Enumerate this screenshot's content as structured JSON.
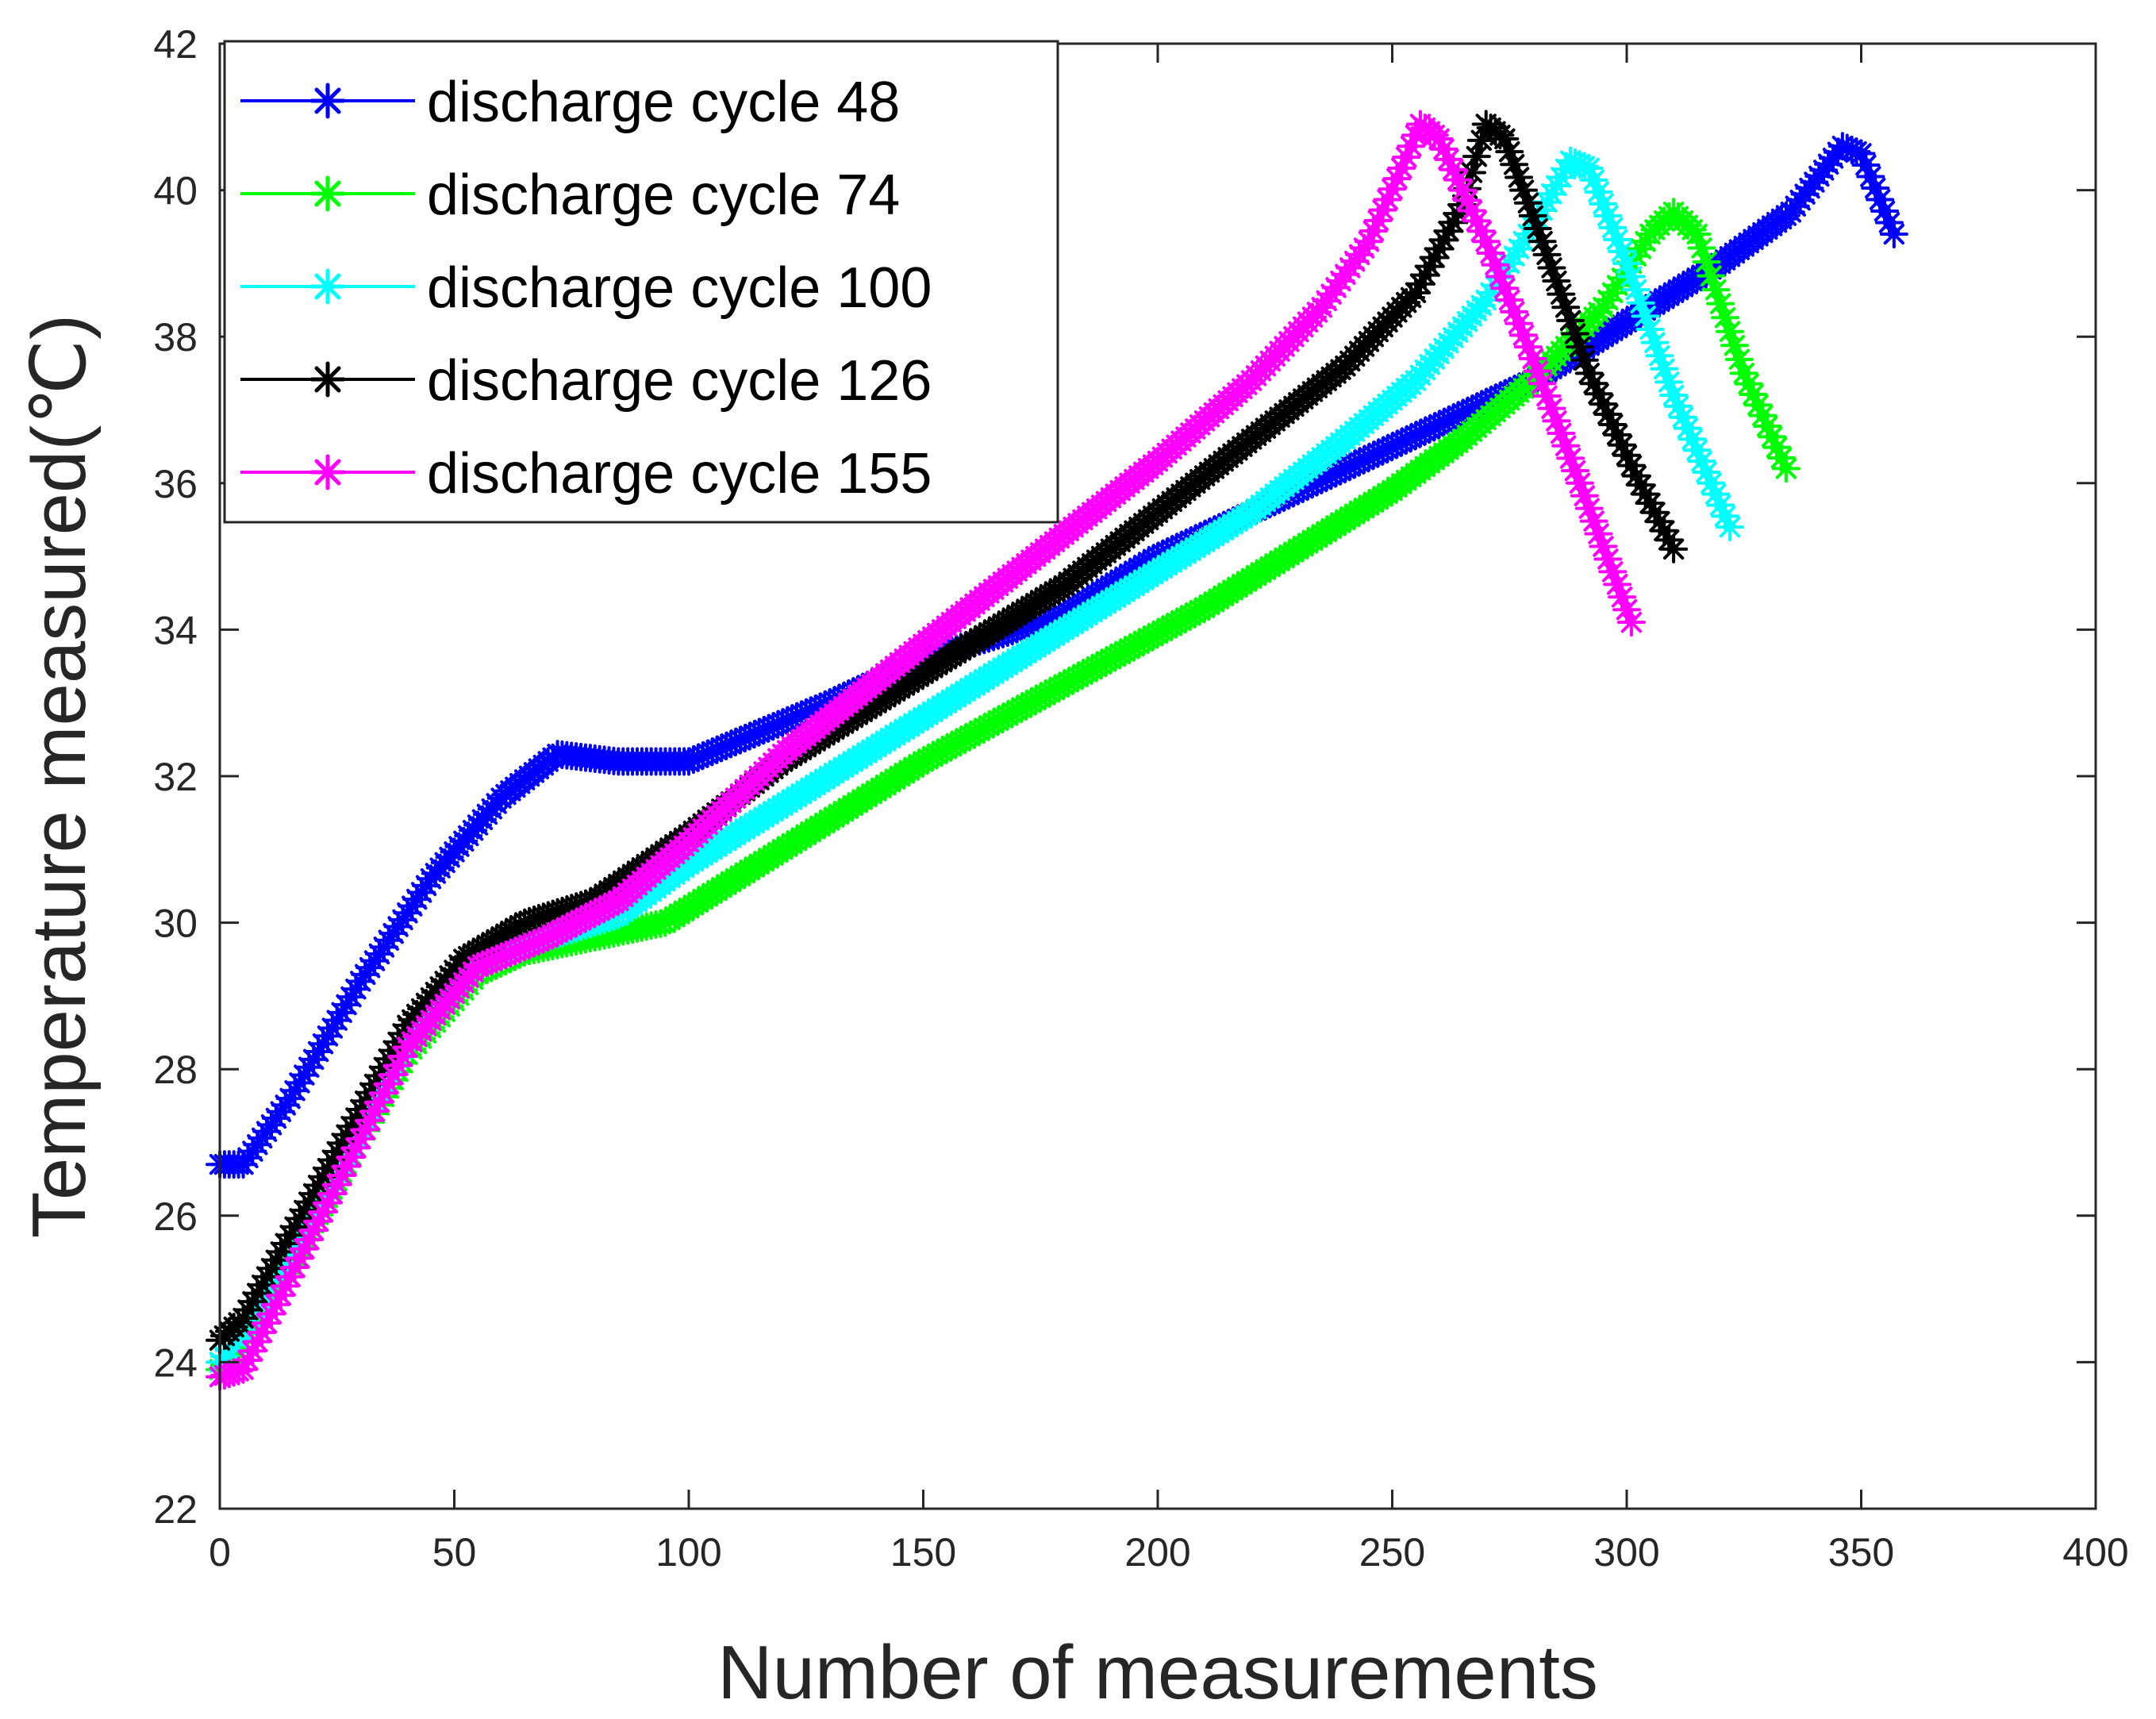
{
  "chart_data": {
    "type": "line",
    "title": "",
    "xlabel": "Number of measurements",
    "ylabel": "Temperature measured(℃)",
    "xlim": [
      0,
      400
    ],
    "ylim": [
      22,
      42
    ],
    "xticks": [
      0,
      50,
      100,
      150,
      200,
      250,
      300,
      350,
      400
    ],
    "yticks": [
      22,
      24,
      26,
      28,
      30,
      32,
      34,
      36,
      38,
      40,
      42
    ],
    "grid": false,
    "legend_position": "top-left",
    "marker": "asterisk",
    "series": [
      {
        "name": "discharge cycle 48",
        "color": "#0000ff",
        "points": [
          [
            0,
            26.7
          ],
          [
            5,
            26.7
          ],
          [
            15,
            27.6
          ],
          [
            30,
            29.2
          ],
          [
            45,
            30.6
          ],
          [
            60,
            31.7
          ],
          [
            72,
            32.3
          ],
          [
            85,
            32.2
          ],
          [
            100,
            32.2
          ],
          [
            115,
            32.6
          ],
          [
            130,
            33.0
          ],
          [
            150,
            33.6
          ],
          [
            180,
            34.2
          ],
          [
            200,
            35.0
          ],
          [
            220,
            35.6
          ],
          [
            240,
            36.2
          ],
          [
            260,
            36.8
          ],
          [
            280,
            37.4
          ],
          [
            300,
            38.2
          ],
          [
            320,
            39.0
          ],
          [
            335,
            39.7
          ],
          [
            346,
            40.6
          ],
          [
            350,
            40.5
          ],
          [
            357,
            39.4
          ]
        ]
      },
      {
        "name": "discharge cycle 74",
        "color": "#00ff00",
        "points": [
          [
            0,
            23.9
          ],
          [
            5,
            24.2
          ],
          [
            20,
            25.9
          ],
          [
            40,
            28.2
          ],
          [
            55,
            29.3
          ],
          [
            65,
            29.6
          ],
          [
            80,
            29.8
          ],
          [
            95,
            30.0
          ],
          [
            110,
            30.6
          ],
          [
            130,
            31.4
          ],
          [
            150,
            32.2
          ],
          [
            170,
            32.9
          ],
          [
            190,
            33.6
          ],
          [
            210,
            34.3
          ],
          [
            230,
            35.1
          ],
          [
            250,
            35.9
          ],
          [
            265,
            36.6
          ],
          [
            280,
            37.4
          ],
          [
            295,
            38.4
          ],
          [
            305,
            39.4
          ],
          [
            310,
            39.7
          ],
          [
            315,
            39.4
          ],
          [
            325,
            37.5
          ],
          [
            334,
            36.2
          ]
        ]
      },
      {
        "name": "discharge cycle 100",
        "color": "#00ffff",
        "points": [
          [
            0,
            24.0
          ],
          [
            5,
            24.4
          ],
          [
            20,
            26.0
          ],
          [
            40,
            28.4
          ],
          [
            55,
            29.5
          ],
          [
            70,
            29.8
          ],
          [
            85,
            30.1
          ],
          [
            100,
            30.8
          ],
          [
            120,
            31.6
          ],
          [
            140,
            32.4
          ],
          [
            160,
            33.2
          ],
          [
            180,
            34.0
          ],
          [
            200,
            34.8
          ],
          [
            220,
            35.6
          ],
          [
            240,
            36.6
          ],
          [
            255,
            37.4
          ],
          [
            270,
            38.5
          ],
          [
            280,
            39.5
          ],
          [
            288,
            40.4
          ],
          [
            292,
            40.3
          ],
          [
            300,
            39.0
          ],
          [
            310,
            37.2
          ],
          [
            322,
            35.4
          ]
        ]
      },
      {
        "name": "discharge cycle 126",
        "color": "#000000",
        "points": [
          [
            0,
            24.3
          ],
          [
            5,
            24.6
          ],
          [
            20,
            26.3
          ],
          [
            40,
            28.6
          ],
          [
            52,
            29.5
          ],
          [
            65,
            30.0
          ],
          [
            80,
            30.3
          ],
          [
            100,
            31.2
          ],
          [
            120,
            32.2
          ],
          [
            140,
            33.0
          ],
          [
            160,
            33.8
          ],
          [
            180,
            34.6
          ],
          [
            200,
            35.6
          ],
          [
            220,
            36.6
          ],
          [
            240,
            37.6
          ],
          [
            255,
            38.6
          ],
          [
            265,
            39.8
          ],
          [
            270,
            40.9
          ],
          [
            274,
            40.7
          ],
          [
            282,
            39.3
          ],
          [
            292,
            37.5
          ],
          [
            302,
            36.1
          ],
          [
            310,
            35.1
          ]
        ]
      },
      {
        "name": "discharge cycle 155",
        "color": "#ff00ff",
        "points": [
          [
            0,
            23.8
          ],
          [
            5,
            23.9
          ],
          [
            20,
            25.8
          ],
          [
            40,
            28.3
          ],
          [
            55,
            29.4
          ],
          [
            70,
            29.8
          ],
          [
            85,
            30.3
          ],
          [
            100,
            31.1
          ],
          [
            120,
            32.3
          ],
          [
            140,
            33.3
          ],
          [
            160,
            34.3
          ],
          [
            180,
            35.3
          ],
          [
            200,
            36.3
          ],
          [
            220,
            37.4
          ],
          [
            235,
            38.4
          ],
          [
            245,
            39.3
          ],
          [
            252,
            40.3
          ],
          [
            256,
            40.9
          ],
          [
            260,
            40.7
          ],
          [
            270,
            39.3
          ],
          [
            280,
            37.7
          ],
          [
            290,
            36.0
          ],
          [
            301,
            34.1
          ]
        ]
      }
    ]
  }
}
